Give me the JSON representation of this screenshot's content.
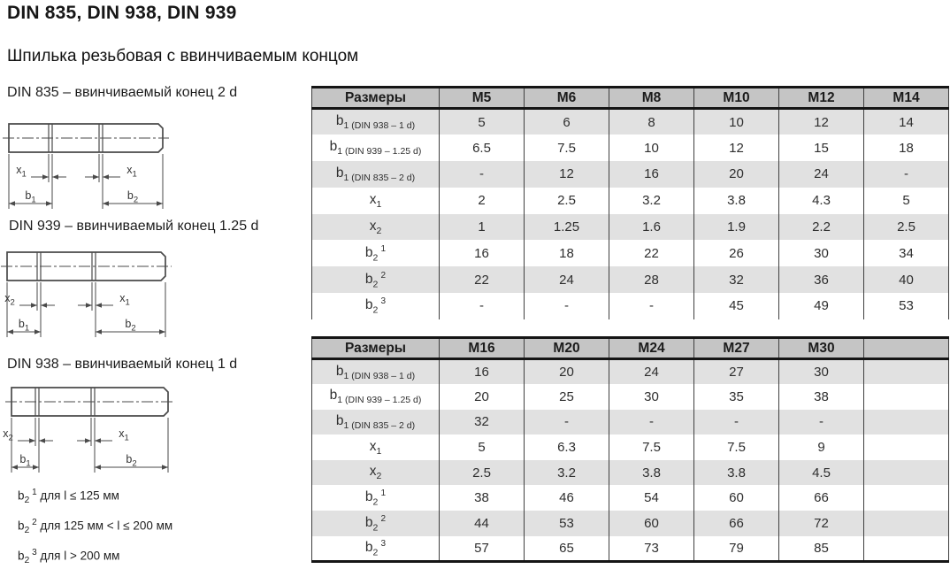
{
  "page": {
    "title": "DIN 835, DIN 938, DIN 939",
    "subtitle": "Шпилька резьбовая с ввинчиваемым концом"
  },
  "drawings": [
    {
      "variant": "din835",
      "caption": "DIN 835 – ввинчиваемый конец 2 d",
      "left_x": {
        "base": "x",
        "sub": "1"
      },
      "right_x": {
        "base": "x",
        "sub": "1"
      },
      "left_b": {
        "base": "b",
        "sub": "1"
      },
      "right_b": {
        "base": "b",
        "sub": "2"
      }
    },
    {
      "variant": "din939",
      "caption": "DIN 939 – ввинчиваемый конец 1.25 d",
      "left_x": {
        "base": "x",
        "sub": "2"
      },
      "right_x": {
        "base": "x",
        "sub": "1"
      },
      "left_b": {
        "base": "b",
        "sub": "1"
      },
      "right_b": {
        "base": "b",
        "sub": "2"
      }
    },
    {
      "variant": "din938",
      "caption": "DIN 938 – ввинчиваемый конец 1 d",
      "left_x": {
        "base": "x",
        "sub": "2"
      },
      "right_x": {
        "base": "x",
        "sub": "1"
      },
      "left_b": {
        "base": "b",
        "sub": "1"
      },
      "right_b": {
        "base": "b",
        "sub": "2"
      }
    }
  ],
  "tables": [
    {
      "name": "sizes-m5-m14",
      "header": [
        "Размеры",
        "M5",
        "M6",
        "M8",
        "M10",
        "M12",
        "M14"
      ],
      "rows": [
        {
          "label": {
            "base": "b",
            "sub": "1 (DIN 938 – 1 d)"
          },
          "values": [
            "5",
            "6",
            "8",
            "10",
            "12",
            "14"
          ]
        },
        {
          "label": {
            "base": "b",
            "sub": "1 (DIN 939 – 1.25 d)"
          },
          "values": [
            "6.5",
            "7.5",
            "10",
            "12",
            "15",
            "18"
          ]
        },
        {
          "label": {
            "base": "b",
            "sub": "1 (DIN 835 – 2 d)"
          },
          "values": [
            "-",
            "12",
            "16",
            "20",
            "24",
            "-"
          ]
        },
        {
          "label": {
            "base": "x",
            "sub": "1"
          },
          "values": [
            "2",
            "2.5",
            "3.2",
            "3.8",
            "4.3",
            "5"
          ]
        },
        {
          "label": {
            "base": "x",
            "sub": "2"
          },
          "values": [
            "1",
            "1.25",
            "1.6",
            "1.9",
            "2.2",
            "2.5"
          ]
        },
        {
          "label": {
            "base": "b",
            "sub": "2",
            "sup": "1"
          },
          "values": [
            "16",
            "18",
            "22",
            "26",
            "30",
            "34"
          ]
        },
        {
          "label": {
            "base": "b",
            "sub": "2",
            "sup": "2"
          },
          "values": [
            "22",
            "24",
            "28",
            "32",
            "36",
            "40"
          ]
        },
        {
          "label": {
            "base": "b",
            "sub": "2",
            "sup": "3"
          },
          "values": [
            "-",
            "-",
            "-",
            "45",
            "49",
            "53"
          ]
        }
      ]
    },
    {
      "name": "sizes-m16-m30",
      "header": [
        "Размеры",
        "M16",
        "M20",
        "M24",
        "M27",
        "M30",
        ""
      ],
      "rows": [
        {
          "label": {
            "base": "b",
            "sub": "1 (DIN 938 – 1 d)"
          },
          "values": [
            "16",
            "20",
            "24",
            "27",
            "30",
            ""
          ]
        },
        {
          "label": {
            "base": "b",
            "sub": "1 (DIN 939 – 1.25 d)"
          },
          "values": [
            "20",
            "25",
            "30",
            "35",
            "38",
            ""
          ]
        },
        {
          "label": {
            "base": "b",
            "sub": "1 (DIN 835 – 2 d)"
          },
          "values": [
            "32",
            "-",
            "-",
            "-",
            "-",
            ""
          ]
        },
        {
          "label": {
            "base": "x",
            "sub": "1"
          },
          "values": [
            "5",
            "6.3",
            "7.5",
            "7.5",
            "9",
            ""
          ]
        },
        {
          "label": {
            "base": "x",
            "sub": "2"
          },
          "values": [
            "2.5",
            "3.2",
            "3.8",
            "3.8",
            "4.5",
            ""
          ]
        },
        {
          "label": {
            "base": "b",
            "sub": "2",
            "sup": "1"
          },
          "values": [
            "38",
            "46",
            "54",
            "60",
            "66",
            ""
          ]
        },
        {
          "label": {
            "base": "b",
            "sub": "2",
            "sup": "2"
          },
          "values": [
            "44",
            "53",
            "60",
            "66",
            "72",
            ""
          ]
        },
        {
          "label": {
            "base": "b",
            "sub": "2",
            "sup": "3"
          },
          "values": [
            "57",
            "65",
            "73",
            "79",
            "85",
            ""
          ]
        }
      ]
    }
  ],
  "footnotes": [
    {
      "marker": {
        "base": "b",
        "sub": "2",
        "sup": "1"
      },
      "text": "для l ≤ 125 мм"
    },
    {
      "marker": {
        "base": "b",
        "sub": "2",
        "sup": "2"
      },
      "text": "для 125 мм < l ≤ 200 мм"
    },
    {
      "marker": {
        "base": "b",
        "sub": "2",
        "sup": "3"
      },
      "text": "для l > 200 мм"
    }
  ],
  "colors": {
    "header_bg": "#c5c5c5",
    "row_alt_bg": "#e1e1e1",
    "row_bg": "#ffffff",
    "border_dark": "#151515",
    "grid_line": "#3f3f3f",
    "drawing_line": "#4a4a4a",
    "text": "#262626"
  }
}
